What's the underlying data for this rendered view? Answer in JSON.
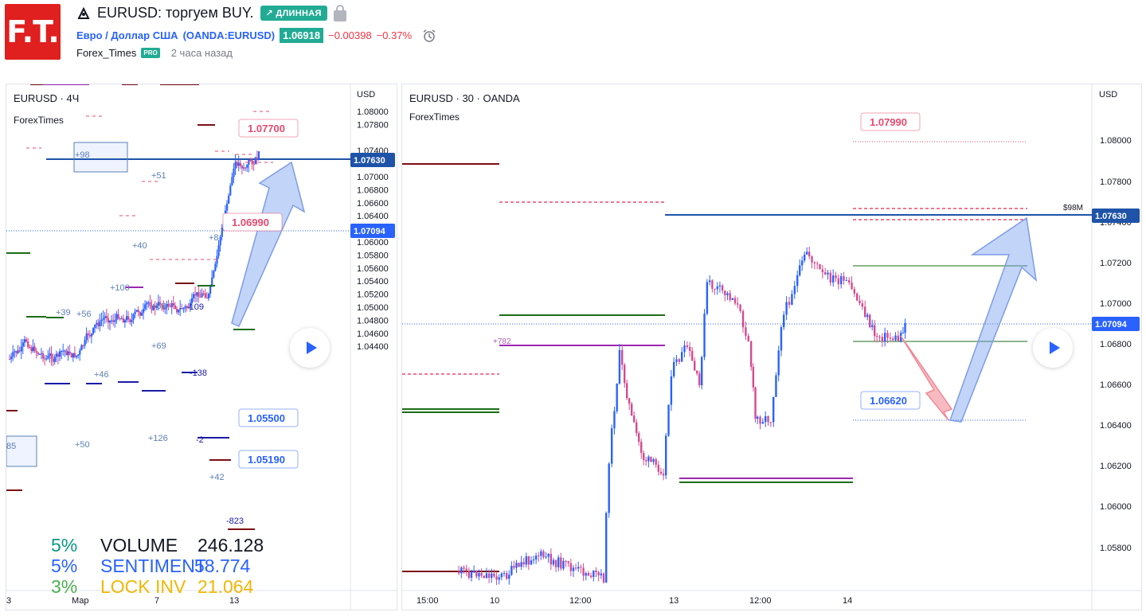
{
  "header": {
    "logo_text": "F.T.",
    "title": "EURUSD: торгуем BUY.",
    "direction_badge": "↗ ДЛИННАЯ",
    "symbol_desc": "Евро / Доллар США",
    "symbol_ticker": "(OANDA:EURUSD)",
    "last_price": "1.06918",
    "change": "−0.00398",
    "change_pct": "−0.37%",
    "author": "Forex_Times",
    "author_badge": "PRO",
    "published": "2 часа назад"
  },
  "left_chart": {
    "symbol_label": "EURUSD · 4Ч",
    "indicator_label": "ForexTimes",
    "currency": "USD",
    "y_ticks": [
      "1.08000",
      "1.07800",
      "1.07400",
      "1.07200",
      "1.07000",
      "1.06800",
      "1.06600",
      "1.06400",
      "1.06200",
      "1.06000",
      "1.05800",
      "1.05600",
      "1.05400",
      "1.05200",
      "1.05000",
      "1.04800",
      "1.04600",
      "1.04400"
    ],
    "price_tag_blue": "1.07630",
    "price_tag_current": "1.07094",
    "x_ticks": [
      "3",
      "Мар",
      "7",
      "13"
    ],
    "callouts": [
      "1.07700",
      "1.06990",
      "1.05500",
      "1.05190"
    ],
    "small_labels": [
      "+98",
      "+51",
      "+40",
      "+100",
      "+68",
      "-109",
      "+39",
      "+56",
      "+69",
      "+46",
      "-138",
      "+50",
      "+126",
      "+42",
      "-823",
      "+8",
      "85",
      "-2"
    ],
    "stats": [
      {
        "pct": "5%",
        "name": "VOLUME",
        "value": "246.128",
        "pct_color": "#089981",
        "name_color": "#131722"
      },
      {
        "pct": "5%",
        "name": "SENTIMENT",
        "value": "58.774",
        "pct_color": "#2962ff",
        "name_color": "#2962ff"
      },
      {
        "pct": "3%",
        "name": "LOCK INV",
        "value": "21.064",
        "pct_color": "#4caf50",
        "name_color": "#f2b705"
      }
    ]
  },
  "right_chart": {
    "symbol_label": "EURUSD · 30 · OANDA",
    "indicator_label": "ForexTimes",
    "currency": "USD",
    "y_ticks": [
      "1.08000",
      "1.07800",
      "1.07400",
      "1.07200",
      "1.07000",
      "1.06800",
      "1.06600",
      "1.06400",
      "1.06200",
      "1.06000",
      "1.05800"
    ],
    "price_tag_blue": "1.07630",
    "price_tag_current": "1.07094",
    "x_ticks": [
      "15:00",
      "10",
      "12:00",
      "13",
      "12:00",
      "14"
    ],
    "callouts": [
      "1.07990",
      "1.06620"
    ],
    "small_labels": [
      "$98M",
      "+782"
    ]
  },
  "colors": {
    "up": "#2962ff",
    "down": "#d44a8f",
    "blue_line": "#1e53a8",
    "dark_red": "#7b0f14",
    "green": "#1b6e16",
    "magenta": "#9c27b0",
    "pink_dash": "#e84a6f"
  }
}
